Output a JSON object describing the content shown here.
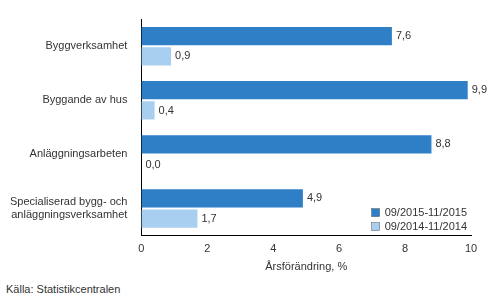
{
  "chart_data": {
    "type": "bar",
    "orientation": "horizontal",
    "categories": [
      "Byggverksamhet",
      "Byggande av hus",
      "Anläggningsarbeten",
      "Specialiserad bygg- och anläggningsverksamhet"
    ],
    "series": [
      {
        "name": "09/2015-11/2015",
        "color": "#2f7fc6",
        "values": [
          7.6,
          9.9,
          8.8,
          4.9
        ],
        "value_labels": [
          "7,6",
          "9,9",
          "8,8",
          "4,9"
        ]
      },
      {
        "name": "09/2014-11/2014",
        "color": "#a9cff0",
        "values": [
          0.9,
          0.4,
          0.0,
          1.7
        ],
        "value_labels": [
          "0,9",
          "0,4",
          "0,0",
          "1,7"
        ]
      }
    ],
    "x_label": "Årsförändring, %",
    "xlim": [
      0,
      10
    ],
    "xticks": [
      0,
      2,
      4,
      6,
      8,
      10
    ],
    "grid": false,
    "legend": "lower right",
    "data_labels": true,
    "source": "Källa: Statistikcentralen"
  }
}
